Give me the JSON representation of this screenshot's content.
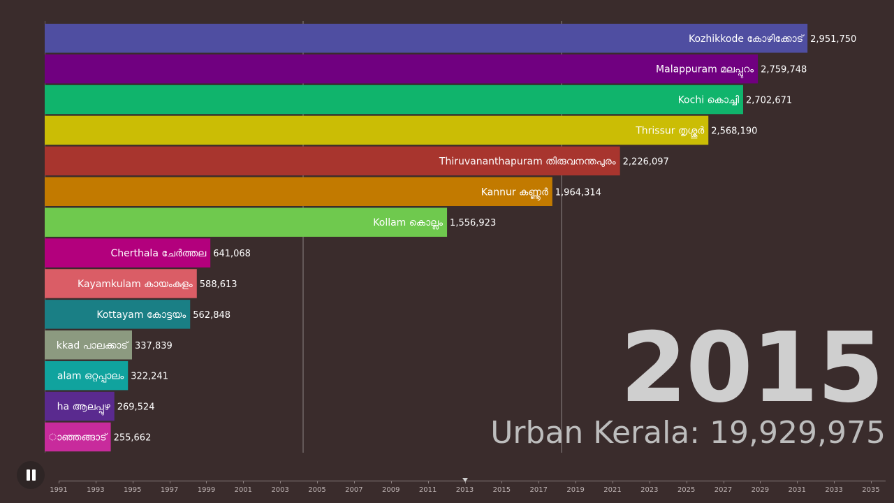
{
  "chart_data": {
    "type": "bar",
    "orientation": "horizontal",
    "categories": [
      "Kozhikkode കോഴിക്കോട്",
      "Malappuram മലപ്പുറം",
      "Kochi കൊച്ചി",
      "Thrissur തൃശ്ശൂർ",
      "Thiruvananthapuram തിരുവനന്തപുരം",
      "Kannur കണ്ണൂർ",
      "Kollam കൊല്ലം",
      "Cherthala ചേർത്തല",
      "Kayamkulam കായംകുളം",
      "Kottayam കോട്ടയം",
      "kkad പാലക്കാട്",
      "alam ഒറ്റപ്പാലം",
      "ha ആലപ്പുഴ",
      "ാഞ്ഞങ്ങാട്"
    ],
    "values": [
      2951750,
      2759748,
      2702671,
      2568190,
      2226097,
      1964314,
      1556923,
      641068,
      588613,
      562848,
      337839,
      322241,
      269524,
      255662
    ],
    "value_labels": [
      "2,951,750",
      "2,759,748",
      "2,702,671",
      "2,568,190",
      "2,226,097",
      "1,964,314",
      "1,556,923",
      "641,068",
      "588,613",
      "562,848",
      "337,839",
      "322,241",
      "269,524",
      "255,662"
    ],
    "colors": [
      "#4f4ea1",
      "#700080",
      "#10b46c",
      "#cbbd05",
      "#a8352e",
      "#c27a00",
      "#6fc94e",
      "#b3007d",
      "#da5d66",
      "#1a7f85",
      "#8c9a80",
      "#10a39e",
      "#5a2a8f",
      "#c82b9c"
    ],
    "xlim": [
      0,
      3000000
    ],
    "grid_values": [
      1000000,
      2000000
    ],
    "grid": true
  },
  "overlay": {
    "year": "2015",
    "total_text": "Urban Kerala: 19,929,975"
  },
  "timeline": {
    "ticks": [
      "1991",
      "1993",
      "1995",
      "1997",
      "1999",
      "2001",
      "2003",
      "2005",
      "2007",
      "2009",
      "2011",
      "2013",
      "2015",
      "2017",
      "2019",
      "2021",
      "2023",
      "2025",
      "2027",
      "2029",
      "2031",
      "2033",
      "2035"
    ],
    "current_fraction": 0.5
  }
}
